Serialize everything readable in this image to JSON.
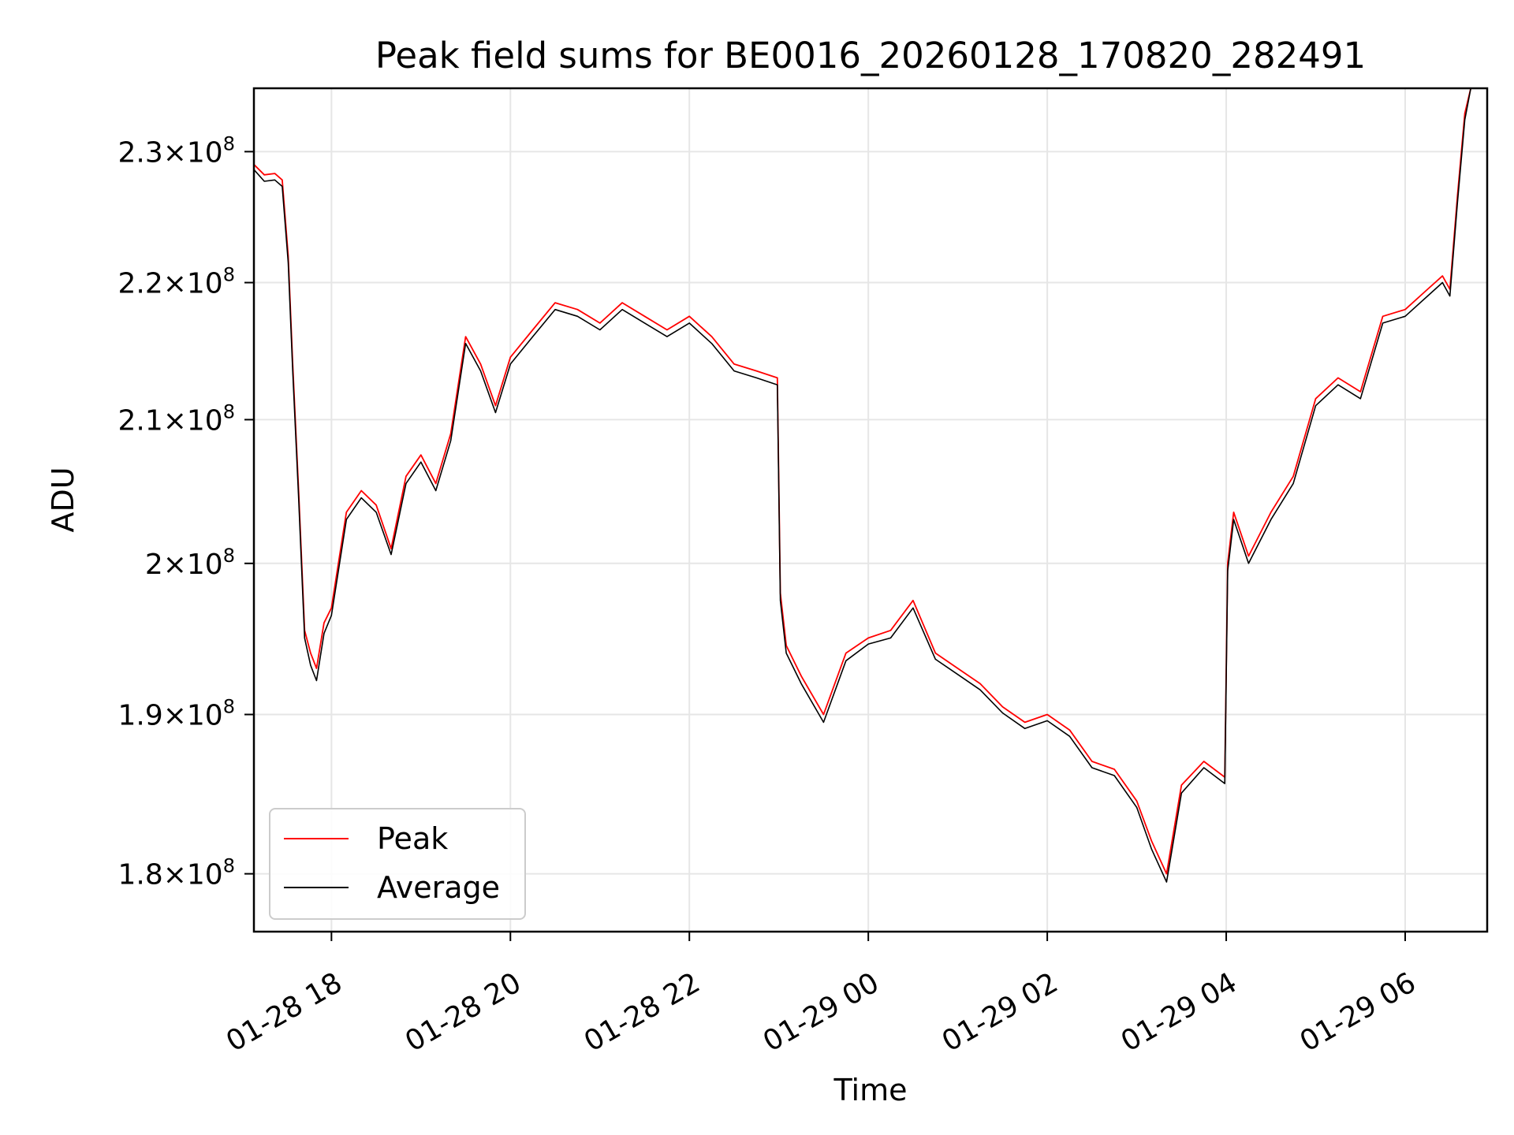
{
  "chart_data": {
    "type": "line",
    "title": "Peak field sums for BE0016_20260128_170820_282491",
    "xlabel": "Time",
    "ylabel": "ADU",
    "yscale": "log",
    "grid": true,
    "legend_position": "lower-left",
    "xlim": [
      "2026-01-28 17:08",
      "2026-01-29 06:55"
    ],
    "ylim": [
      176500000,
      235000000
    ],
    "x_ticks": [
      "2026-01-28 18:00",
      "2026-01-28 20:00",
      "2026-01-28 22:00",
      "2026-01-29 00:00",
      "2026-01-29 02:00",
      "2026-01-29 04:00",
      "2026-01-29 06:00"
    ],
    "x_tick_labels": [
      "01-28 18",
      "01-28 20",
      "01-28 22",
      "01-29 00",
      "01-29 02",
      "01-29 04",
      "01-29 06"
    ],
    "y_ticks": [
      {
        "value": 180000000,
        "mantissa": "1.8",
        "exp": "8"
      },
      {
        "value": 190000000,
        "mantissa": "1.9",
        "exp": "8"
      },
      {
        "value": 200000000,
        "mantissa": "2",
        "exp": "8"
      },
      {
        "value": 210000000,
        "mantissa": "2.1",
        "exp": "8"
      },
      {
        "value": 220000000,
        "mantissa": "2.2",
        "exp": "8"
      },
      {
        "value": 230000000,
        "mantissa": "2.3",
        "exp": "8"
      }
    ],
    "x": [
      "2026-01-28 17:08",
      "2026-01-28 17:15",
      "2026-01-28 17:22",
      "2026-01-28 17:27",
      "2026-01-28 17:31",
      "2026-01-28 17:34",
      "2026-01-28 17:38",
      "2026-01-28 17:42",
      "2026-01-28 17:46",
      "2026-01-28 17:50",
      "2026-01-28 17:55",
      "2026-01-28 18:00",
      "2026-01-28 18:10",
      "2026-01-28 18:20",
      "2026-01-28 18:30",
      "2026-01-28 18:40",
      "2026-01-28 18:50",
      "2026-01-28 19:00",
      "2026-01-28 19:10",
      "2026-01-28 19:20",
      "2026-01-28 19:30",
      "2026-01-28 19:40",
      "2026-01-28 19:50",
      "2026-01-28 20:00",
      "2026-01-28 20:15",
      "2026-01-28 20:30",
      "2026-01-28 20:45",
      "2026-01-28 21:00",
      "2026-01-28 21:15",
      "2026-01-28 21:30",
      "2026-01-28 21:45",
      "2026-01-28 22:00",
      "2026-01-28 22:15",
      "2026-01-28 22:30",
      "2026-01-28 22:45",
      "2026-01-28 22:59",
      "2026-01-28 23:01",
      "2026-01-28 23:05",
      "2026-01-28 23:15",
      "2026-01-28 23:30",
      "2026-01-28 23:45",
      "2026-01-29 00:00",
      "2026-01-29 00:15",
      "2026-01-29 00:30",
      "2026-01-29 00:45",
      "2026-01-29 01:00",
      "2026-01-29 01:15",
      "2026-01-29 01:30",
      "2026-01-29 01:45",
      "2026-01-29 02:00",
      "2026-01-29 02:15",
      "2026-01-29 02:30",
      "2026-01-29 02:45",
      "2026-01-29 03:00",
      "2026-01-29 03:10",
      "2026-01-29 03:20",
      "2026-01-29 03:30",
      "2026-01-29 03:45",
      "2026-01-29 03:59",
      "2026-01-29 04:01",
      "2026-01-29 04:05",
      "2026-01-29 04:15",
      "2026-01-29 04:30",
      "2026-01-29 04:45",
      "2026-01-29 05:00",
      "2026-01-29 05:15",
      "2026-01-29 05:30",
      "2026-01-29 05:45",
      "2026-01-29 06:00",
      "2026-01-29 06:15",
      "2026-01-29 06:25",
      "2026-01-29 06:30",
      "2026-01-29 06:35",
      "2026-01-29 06:40",
      "2026-01-29 06:44"
    ],
    "series": [
      {
        "name": "Peak",
        "color": "#ff0000",
        "values": [
          229000000,
          228200000,
          228300000,
          227800000,
          222000000,
          214000000,
          205000000,
          195500000,
          194000000,
          193000000,
          196000000,
          197000000,
          203500000,
          205000000,
          204000000,
          201000000,
          206000000,
          207500000,
          205500000,
          209000000,
          216000000,
          214000000,
          211000000,
          214500000,
          216500000,
          218500000,
          218000000,
          217000000,
          218500000,
          217500000,
          216500000,
          217500000,
          216000000,
          214000000,
          213500000,
          213000000,
          198000000,
          194500000,
          192500000,
          190000000,
          194000000,
          195000000,
          195500000,
          197500000,
          194000000,
          193000000,
          192000000,
          190500000,
          189500000,
          190000000,
          189000000,
          187000000,
          186500000,
          184500000,
          182000000,
          180000000,
          185500000,
          187000000,
          186000000,
          200000000,
          203500000,
          200500000,
          203500000,
          206000000,
          211500000,
          213000000,
          212000000,
          217500000,
          218000000,
          219500000,
          220500000,
          219500000,
          226500000,
          233000000,
          235000000
        ]
      },
      {
        "name": "Average",
        "color": "#000000",
        "values": [
          228600000,
          227700000,
          227800000,
          227300000,
          221500000,
          213500000,
          204500000,
          195000000,
          193200000,
          192200000,
          195300000,
          196500000,
          203000000,
          204500000,
          203500000,
          200600000,
          205500000,
          207000000,
          205000000,
          208500000,
          215500000,
          213500000,
          210500000,
          214000000,
          216000000,
          218000000,
          217500000,
          216500000,
          218000000,
          217000000,
          216000000,
          217000000,
          215500000,
          213500000,
          213000000,
          212500000,
          197500000,
          194000000,
          192000000,
          189500000,
          193500000,
          194600000,
          195000000,
          197000000,
          193600000,
          192600000,
          191600000,
          190100000,
          189100000,
          189600000,
          188600000,
          186600000,
          186100000,
          184100000,
          181500000,
          179500000,
          185000000,
          186600000,
          185600000,
          199500000,
          203000000,
          200000000,
          203000000,
          205500000,
          211000000,
          212500000,
          211500000,
          217000000,
          217500000,
          219000000,
          220000000,
          219000000,
          226000000,
          232500000,
          235000000
        ]
      }
    ]
  }
}
